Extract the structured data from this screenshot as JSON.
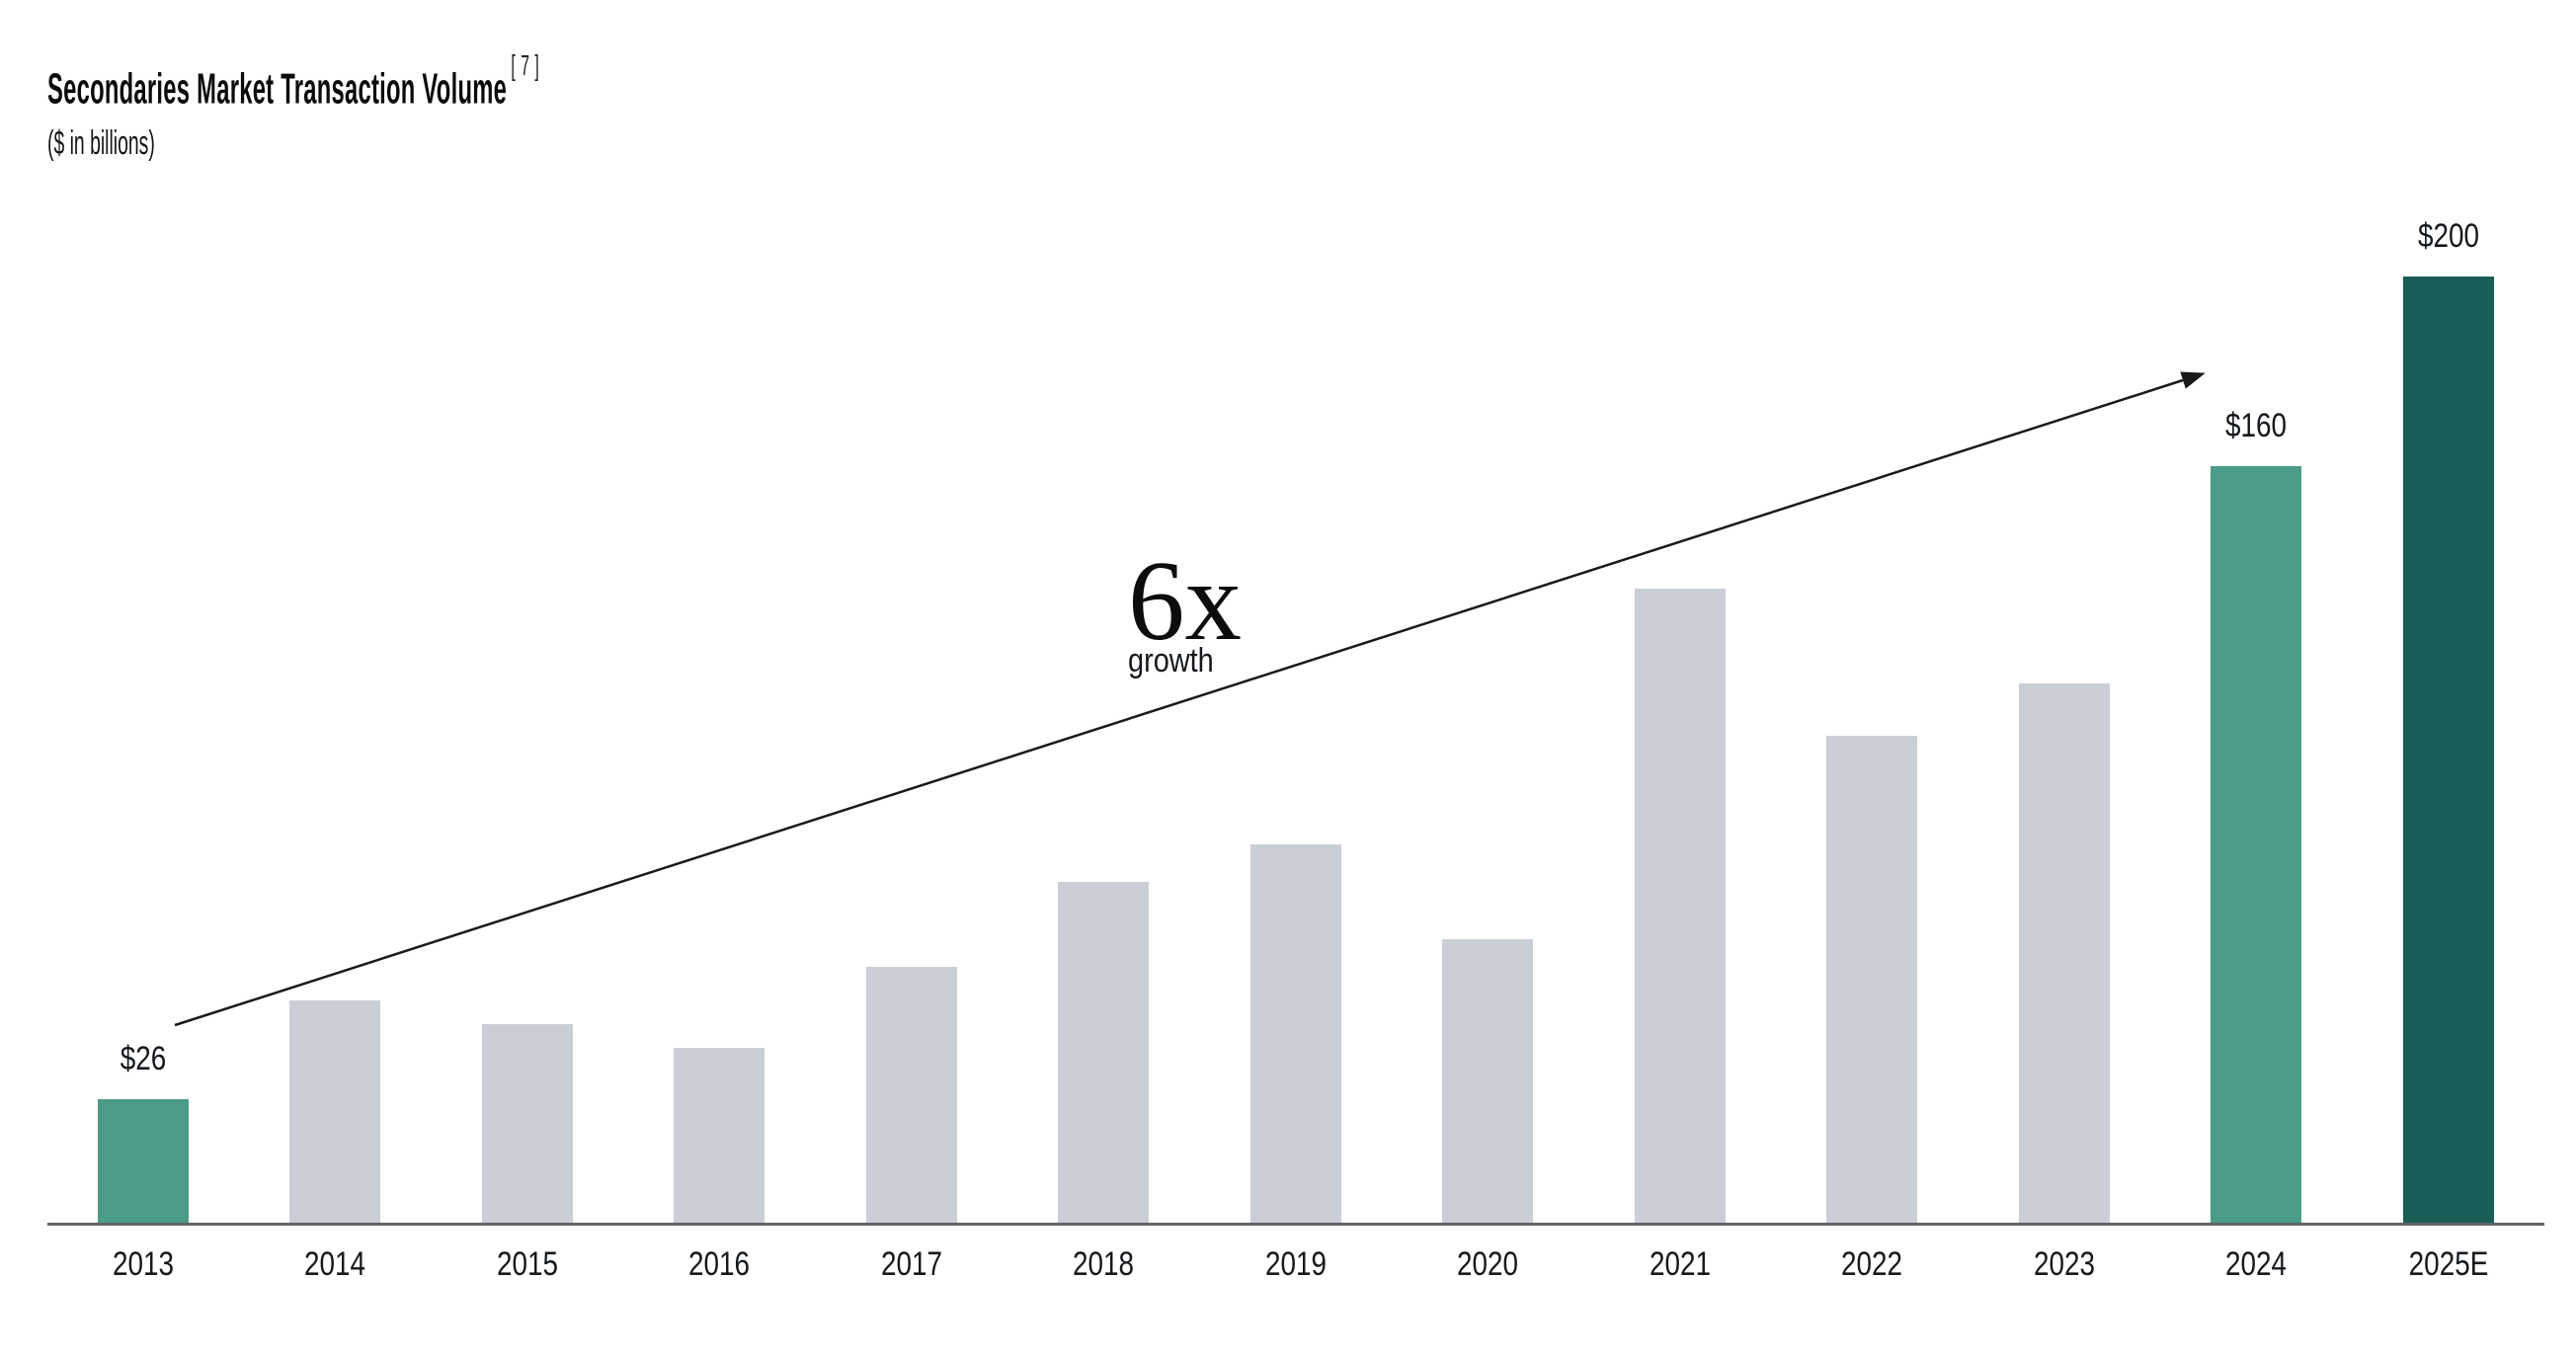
{
  "header": {
    "title": "Secondaries Market Transaction Volume",
    "footnote_marker": "[ 7 ]",
    "subtitle": "($ in billions)"
  },
  "annotation": {
    "multiplier": "6x",
    "caption": "growth"
  },
  "colors": {
    "bar_default": "#CACED6",
    "bar_highlight": "#4A9C89",
    "bar_projection": "#1A5D57",
    "axis_line": "#5F6368",
    "arrow": "#1A1A1A",
    "label_text": "#15191D"
  },
  "chart_data": {
    "type": "bar",
    "title": "Secondaries Market Transaction Volume",
    "subtitle": "($ in billions)",
    "unit": "USD billions",
    "categories": [
      "2013",
      "2014",
      "2015",
      "2016",
      "2017",
      "2018",
      "2019",
      "2020",
      "2021",
      "2022",
      "2023",
      "2024",
      "2025E"
    ],
    "values": [
      26,
      47,
      42,
      37,
      54,
      72,
      80,
      60,
      134,
      103,
      114,
      160,
      200
    ],
    "value_labels": [
      "$26",
      null,
      null,
      null,
      null,
      null,
      null,
      null,
      null,
      null,
      null,
      "$160",
      "$200"
    ],
    "bar_styles": [
      "highlight",
      "default",
      "default",
      "default",
      "default",
      "default",
      "default",
      "default",
      "default",
      "default",
      "default",
      "highlight",
      "projection"
    ],
    "ylim": [
      0,
      210
    ],
    "grid": false,
    "legend": false,
    "annotations": [
      {
        "text": "6x growth",
        "type": "trend-arrow",
        "from_category": "2013",
        "to_category": "2024"
      }
    ]
  }
}
